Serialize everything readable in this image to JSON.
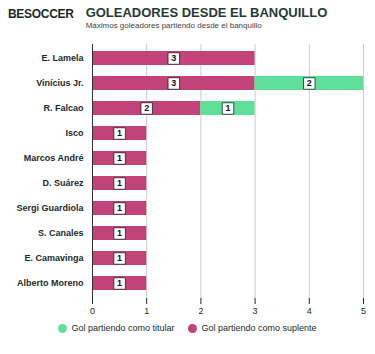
{
  "chart_data": {
    "type": "bar",
    "orientation": "horizontal",
    "stacked": true,
    "data_labels": true,
    "grid": true,
    "brand": "BESOCCER",
    "title": "GOLEADORES DESDE EL BANQUILLO",
    "subtitle": "Máximos goleadores partiendo desde el banquillo",
    "categories": [
      "E. Lamela",
      "Vinícius Jr.",
      "R. Falcao",
      "Isco",
      "Marcos André",
      "D. Suárez",
      "Sergi Guardiola",
      "S. Canales",
      "E. Camavinga",
      "Alberto Moreno"
    ],
    "series": [
      {
        "name": "Gol partiendo como suplente",
        "color": "#c2427a",
        "values": [
          3,
          3,
          2,
          1,
          1,
          1,
          1,
          1,
          1,
          1
        ]
      },
      {
        "name": "Gol partiendo como titular",
        "color": "#5fe09a",
        "values": [
          0,
          2,
          1,
          0,
          0,
          0,
          0,
          0,
          0,
          0
        ]
      }
    ],
    "xlim": [
      0,
      5
    ],
    "xticks": [
      0,
      1,
      2,
      3,
      4,
      5
    ],
    "legend": "bottom"
  }
}
